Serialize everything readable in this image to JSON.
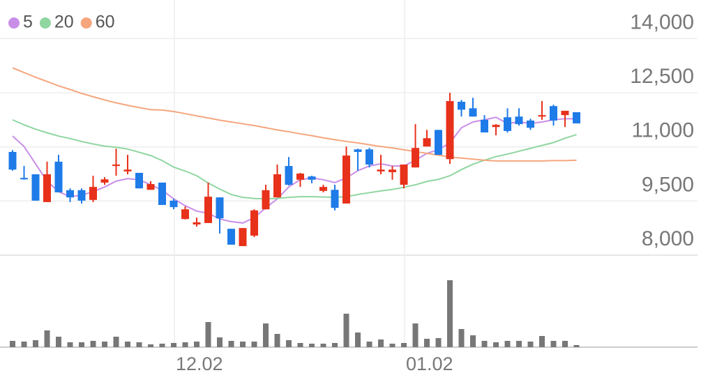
{
  "chart_data": {
    "type": "candlestick",
    "categories": [
      null,
      null,
      null,
      null,
      null,
      null,
      null,
      null,
      null,
      null,
      null,
      null,
      null,
      null,
      "12.02",
      null,
      null,
      null,
      null,
      null,
      null,
      null,
      null,
      null,
      null,
      null,
      null,
      null,
      null,
      null,
      null,
      null,
      null,
      null,
      "01.02",
      null,
      null,
      null,
      null,
      null,
      null,
      null,
      null,
      null,
      null,
      null,
      null,
      null,
      null,
      null
    ],
    "open": [
      10860,
      10140,
      10240,
      9470,
      10590,
      9800,
      9800,
      9530,
      10010,
      10470,
      10320,
      10280,
      9810,
      10010,
      9510,
      9000,
      8850,
      8890,
      9600,
      8730,
      8250,
      8540,
      9270,
      9600,
      10470,
      10090,
      10180,
      9780,
      9810,
      9430,
      10930,
      10930,
      10320,
      10300,
      9950,
      10430,
      11010,
      11470,
      10660,
      12250,
      12070,
      11750,
      11550,
      11820,
      11840,
      11730,
      11840,
      12130,
      11880,
      11960
    ],
    "high": [
      10910,
      10470,
      10240,
      10590,
      10780,
      9850,
      9850,
      10200,
      10160,
      10950,
      10780,
      10280,
      10050,
      10010,
      9560,
      9350,
      9040,
      10010,
      9600,
      8730,
      8750,
      9270,
      9950,
      10510,
      10720,
      10280,
      10200,
      9950,
      9950,
      11010,
      10950,
      10970,
      10780,
      10470,
      10510,
      11630,
      11470,
      11470,
      12500,
      12300,
      12360,
      11880,
      11630,
      12070,
      12070,
      11780,
      12270,
      12170,
      12000,
      11960
    ],
    "low": [
      10340,
      10090,
      9510,
      9470,
      9740,
      9470,
      9430,
      9470,
      9950,
      10200,
      10240,
      9850,
      9810,
      9390,
      9270,
      8990,
      8790,
      8890,
      8600,
      8290,
      8250,
      8500,
      9270,
      9600,
      9930,
      9890,
      9990,
      9740,
      9240,
      9430,
      10340,
      10430,
      10240,
      10090,
      9850,
      10430,
      11010,
      10780,
      10530,
      11840,
      11840,
      11400,
      11320,
      11400,
      11590,
      11470,
      11750,
      11590,
      11550,
      11650
    ],
    "close": [
      10370,
      10100,
      9510,
      10240,
      9740,
      9600,
      9510,
      9890,
      10100,
      10510,
      10370,
      9850,
      9970,
      9390,
      9330,
      9270,
      8910,
      9620,
      9020,
      8290,
      8750,
      9240,
      9800,
      10240,
      9950,
      10260,
      10090,
      9890,
      9310,
      10760,
      10860,
      10510,
      10370,
      10370,
      10510,
      10970,
      11240,
      10780,
      12270,
      12030,
      11840,
      11400,
      11610,
      11440,
      11630,
      11530,
      11880,
      11730,
      12000,
      11650
    ],
    "up_color": "#e8311a",
    "down_color": "#1e7be8",
    "ylim": [
      8000,
      15070
    ],
    "yticks": [
      {
        "value": 8000,
        "label": "8,000"
      },
      {
        "value": 9500,
        "label": "9,500"
      },
      {
        "value": 11000,
        "label": "11,000"
      },
      {
        "value": 12500,
        "label": "12,500"
      },
      {
        "value": 14000,
        "label": "14,000"
      }
    ],
    "grid": true,
    "series": [
      {
        "name": "5",
        "color": "#c98ee8",
        "values": [
          11300,
          11010,
          10530,
          10050,
          9760,
          9620,
          9660,
          9760,
          9890,
          10050,
          10120,
          10090,
          9950,
          9800,
          9560,
          9370,
          9220,
          9160,
          9000,
          8930,
          8890,
          9040,
          9310,
          9560,
          9890,
          10090,
          10140,
          10090,
          10010,
          10140,
          10340,
          10470,
          10530,
          10470,
          10470,
          10630,
          10820,
          10920,
          11110,
          11530,
          11690,
          11750,
          11820,
          11650,
          11690,
          11650,
          11690,
          11750,
          11780,
          11780
        ]
      },
      {
        "name": "20",
        "color": "#8fd6a0",
        "values": [
          11750,
          11610,
          11490,
          11390,
          11300,
          11230,
          11150,
          11080,
          11020,
          10990,
          10940,
          10850,
          10760,
          10620,
          10440,
          10330,
          10200,
          10000,
          9830,
          9680,
          9600,
          9570,
          9560,
          9570,
          9600,
          9620,
          9620,
          9610,
          9600,
          9620,
          9680,
          9730,
          9780,
          9820,
          9880,
          9950,
          10040,
          10100,
          10200,
          10370,
          10520,
          10630,
          10730,
          10800,
          10880,
          10960,
          11040,
          11120,
          11240,
          11340
        ]
      },
      {
        "name": "60",
        "color": "#f5a67d",
        "values": [
          13190,
          13060,
          12930,
          12810,
          12690,
          12590,
          12480,
          12390,
          12300,
          12220,
          12150,
          12090,
          12030,
          12020,
          11980,
          11920,
          11860,
          11800,
          11740,
          11690,
          11640,
          11590,
          11530,
          11470,
          11420,
          11360,
          11310,
          11250,
          11200,
          11150,
          11110,
          11060,
          11010,
          10970,
          10920,
          10870,
          10820,
          10770,
          10720,
          10690,
          10660,
          10630,
          10610,
          10610,
          10610,
          10610,
          10610,
          10620,
          10620,
          10630
        ]
      }
    ],
    "volume": {
      "color": "#777777",
      "ylim": [
        0,
        132
      ],
      "values": [
        9,
        8,
        10,
        24,
        15,
        7,
        7,
        9,
        8,
        15,
        8,
        7,
        4,
        5,
        6,
        7,
        8,
        36,
        14,
        9,
        8,
        8,
        34,
        19,
        10,
        6,
        5,
        5,
        6,
        48,
        21,
        8,
        11,
        5,
        6,
        34,
        12,
        13,
        96,
        26,
        17,
        9,
        7,
        9,
        9,
        8,
        16,
        9,
        9,
        3
      ]
    }
  }
}
